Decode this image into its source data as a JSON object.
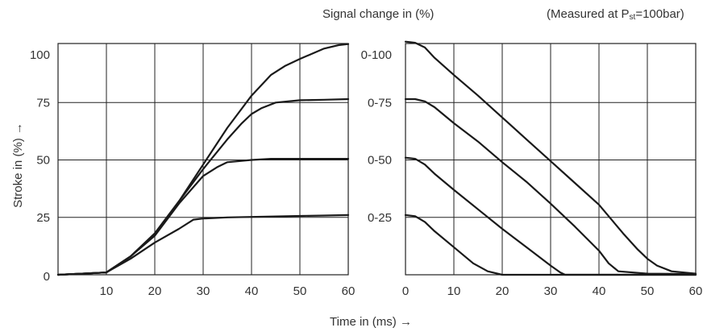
{
  "header": {
    "signal_title": "Signal change in (%)",
    "measured_note": "(Measured at P",
    "measured_sub": "st",
    "measured_tail": "=100bar)"
  },
  "chart_data": [
    {
      "type": "line",
      "title": "",
      "xlabel": "Time in (ms) →",
      "ylabel": "Stroke in (%) →",
      "xlim": [
        0,
        60
      ],
      "ylim": [
        0,
        100
      ],
      "x_ticks": [
        "10",
        "20",
        "30",
        "40",
        "50",
        "60"
      ],
      "y_ticks": [
        "0",
        "25",
        "50",
        "75",
        "100"
      ],
      "grid": true,
      "series": [
        {
          "x": [
            0,
            5,
            10,
            15,
            20,
            25,
            28,
            30,
            35,
            40,
            45,
            50,
            55,
            60
          ],
          "y": [
            0,
            0.5,
            1,
            7,
            14,
            20,
            24,
            24.5,
            25,
            25.2,
            25.4,
            25.6,
            25.8,
            26
          ]
        },
        {
          "x": [
            0,
            5,
            10,
            15,
            20,
            25,
            30,
            33,
            35,
            40,
            44,
            50,
            55,
            60
          ],
          "y": [
            0,
            0.5,
            1,
            8,
            17,
            31,
            43,
            47,
            49,
            50,
            50.5,
            50.5,
            50.5,
            50.5
          ]
        },
        {
          "x": [
            0,
            5,
            10,
            15,
            20,
            25,
            30,
            35,
            38,
            40,
            42,
            45,
            50,
            55,
            60
          ],
          "y": [
            0,
            0.5,
            1,
            8,
            18,
            32,
            46,
            59,
            66,
            70,
            72.5,
            75,
            76,
            76.2,
            76.5
          ]
        },
        {
          "x": [
            0,
            5,
            10,
            15,
            20,
            25,
            30,
            35,
            40,
            44,
            47,
            50,
            55,
            58,
            60
          ],
          "y": [
            0,
            0.5,
            1,
            8,
            18,
            32,
            48,
            64,
            78,
            87,
            91,
            94,
            98.5,
            100,
            100.5
          ]
        }
      ]
    },
    {
      "type": "line",
      "title": "Signal change in (%)",
      "xlabel": "Time in (ms) →",
      "ylabel": "",
      "xlim": [
        0,
        60
      ],
      "ylim": [
        0,
        100
      ],
      "x_ticks": [
        "0",
        "10",
        "20",
        "30",
        "40",
        "50",
        "60"
      ],
      "y_ticks": [
        "0-25",
        "0-50",
        "0-75",
        "0-100"
      ],
      "grid": true,
      "series": [
        {
          "name": "0-25",
          "x": [
            0,
            2,
            4,
            6,
            10,
            14,
            17,
            20,
            30,
            40,
            50,
            60
          ],
          "y": [
            26,
            25.5,
            23,
            19,
            12,
            5,
            1.5,
            0,
            0,
            0,
            0,
            0
          ]
        },
        {
          "name": "0-50",
          "x": [
            0,
            2,
            4,
            6,
            10,
            15,
            20,
            25,
            30,
            32,
            33,
            40,
            50,
            60
          ],
          "y": [
            51,
            50.5,
            48,
            44,
            37,
            28.5,
            20,
            12,
            4,
            1,
            0,
            0,
            0,
            0
          ]
        },
        {
          "name": "0-75",
          "x": [
            0,
            2,
            4,
            6,
            10,
            15,
            20,
            25,
            30,
            35,
            40,
            42,
            44,
            50,
            60
          ],
          "y": [
            76.5,
            76.5,
            75.5,
            73,
            66,
            58,
            49,
            40.5,
            31,
            21,
            10.5,
            5,
            1.5,
            0.5,
            0.3
          ]
        },
        {
          "name": "0-100",
          "x": [
            0,
            2,
            4,
            6,
            10,
            15,
            20,
            25,
            30,
            35,
            40,
            45,
            48,
            50,
            52,
            55,
            60
          ],
          "y": [
            101.5,
            101,
            99,
            94.5,
            87,
            78,
            68.5,
            59,
            49.5,
            40,
            30.5,
            18,
            11,
            7,
            4,
            1.5,
            0.5
          ]
        }
      ]
    }
  ]
}
